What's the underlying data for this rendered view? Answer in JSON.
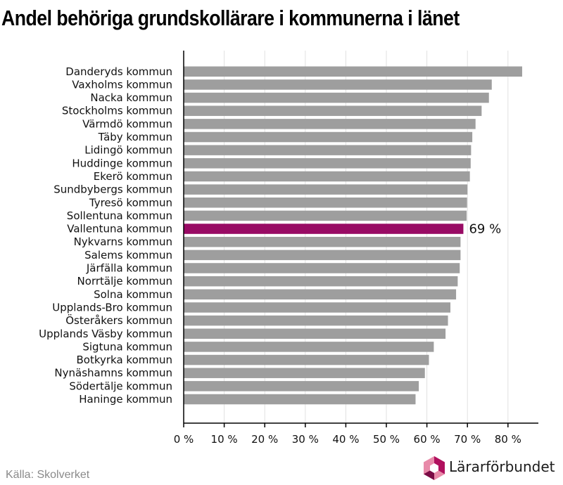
{
  "title": "Andel behöriga grundskollärare i kommunerna i länet",
  "source": "Källa: Skolverket",
  "logo_text": "Lärarförbundet",
  "colors": {
    "bar": "#9e9e9e",
    "highlight": "#980a64",
    "grid": "#e0e0e0",
    "axis": "#000000",
    "logo_primary": "#b0105e",
    "logo_secondary": "#e88aa9"
  },
  "chart_data": {
    "type": "bar",
    "orientation": "horizontal",
    "categories": [
      "Danderyds kommun",
      "Vaxholms kommun",
      "Nacka kommun",
      "Stockholms kommun",
      "Värmdö kommun",
      "Täby kommun",
      "Lidingö kommun",
      "Huddinge kommun",
      "Ekerö kommun",
      "Sundbybergs kommun",
      "Tyresö kommun",
      "Sollentuna kommun",
      "Vallentuna kommun",
      "Nykvarns kommun",
      "Salems kommun",
      "Järfälla kommun",
      "Norrtälje kommun",
      "Solna kommun",
      "Upplands-Bro kommun",
      "Österåkers kommun",
      "Upplands Väsby kommun",
      "Sigtuna kommun",
      "Botkyrka kommun",
      "Nynäshamns kommun",
      "Södertälje kommun",
      "Haninge kommun"
    ],
    "values": [
      83.5,
      76,
      75.3,
      73.5,
      72,
      71.2,
      70.9,
      70.8,
      70.6,
      70,
      69.9,
      69.8,
      69,
      68.3,
      68.3,
      68.1,
      67.6,
      67.2,
      65.8,
      65.2,
      64.6,
      61.7,
      60.5,
      59.5,
      58,
      57.2
    ],
    "highlight_index": 12,
    "highlight_label": "69 %",
    "xlim": [
      0,
      87.5
    ],
    "xticks": [
      0,
      10,
      20,
      30,
      40,
      50,
      60,
      70,
      80
    ],
    "xtick_labels": [
      "0 %",
      "10 %",
      "20 %",
      "30 %",
      "40 %",
      "50 %",
      "60 %",
      "70 %",
      "80 %"
    ],
    "grid": true,
    "xlabel": "",
    "ylabel": ""
  }
}
